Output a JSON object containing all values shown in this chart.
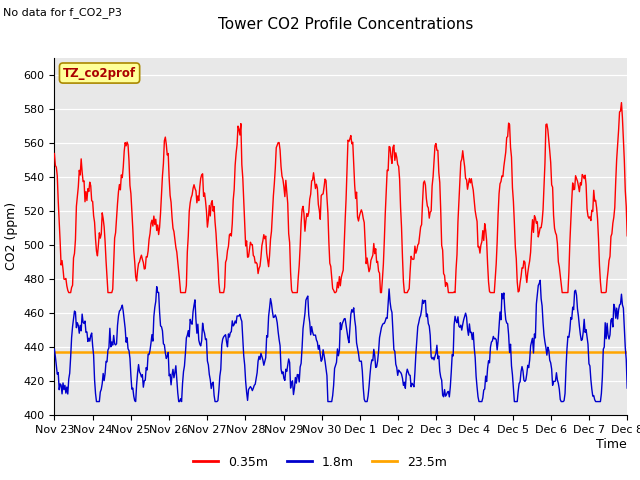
{
  "title": "Tower CO2 Profile Concentrations",
  "top_left_text": "No data for f_CO2_P3",
  "legend_box_text": "TZ_co2prof",
  "ylabel": "CO2 (ppm)",
  "xlabel": "Time",
  "ylim": [
    400,
    610
  ],
  "yticks": [
    400,
    420,
    440,
    460,
    480,
    500,
    520,
    540,
    560,
    580,
    600
  ],
  "bg_color": "#e8e8e8",
  "fig_bg_color": "#ffffff",
  "line_red_color": "#ff0000",
  "line_blue_color": "#0000cc",
  "line_orange_color": "#ffa500",
  "orange_flat_value": 437,
  "legend_entries": [
    "0.35m",
    "1.8m",
    "23.5m"
  ],
  "x_tick_labels": [
    "Nov 23",
    "Nov 24",
    "Nov 25",
    "Nov 26",
    "Nov 27",
    "Nov 28",
    "Nov 29",
    "Nov 30",
    "Dec 1",
    "Dec 2",
    "Dec 3",
    "Dec 4",
    "Dec 5",
    "Dec 6",
    "Dec 7",
    "Dec 8"
  ]
}
